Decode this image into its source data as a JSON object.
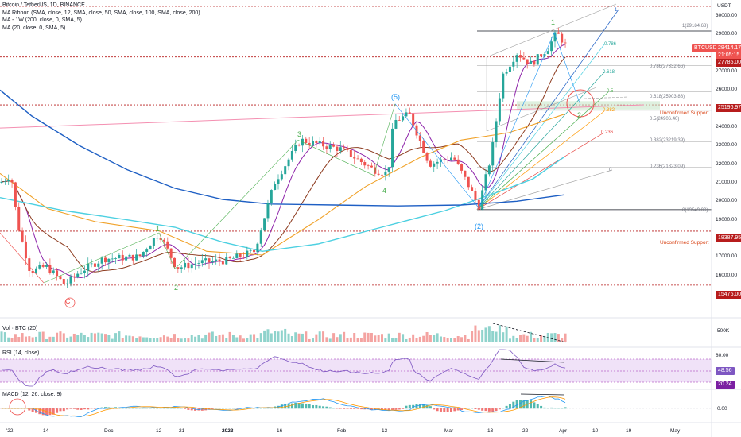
{
  "header": {
    "title": "Bitcoin / TetherUS, 1D, BINANCE",
    "ribbon": "MA Ribbon (SMA, close, 12, SMA, close, 50, SMA, close, 100, SMA, close, 200)",
    "ma_1w": "MA - 1W (200, close, 0, SMA, 5)",
    "ma_20": "MA (20, close, 0, SMA, 5)"
  },
  "axis": {
    "currency": "USDT",
    "price_ticks": [
      "30000.00",
      "29000.00",
      "28000.00",
      "27000.00",
      "26000.00",
      "25000.00",
      "24000.00",
      "23000.00",
      "22000.00",
      "21000.00",
      "20000.00",
      "19000.00",
      "18000.00",
      "17000.00",
      "16000.00",
      "15000.00"
    ],
    "volume_tick": "500K",
    "rsi_tick": "80.00",
    "macd_tick": "0.00",
    "time_labels": [
      "'22",
      "14",
      "Dec",
      "12",
      "21",
      "2023",
      "16",
      "Feb",
      "13",
      "Mar",
      "13",
      "22",
      "Apr",
      "10",
      "19",
      "May"
    ]
  },
  "price_tags": {
    "symbol": "BTCUSDT",
    "last_price": "28414.17",
    "countdown": "21:05:15",
    "level_27785": "27785.00",
    "level_25196": "25196.97",
    "level_18387": "18387.95",
    "level_15476": "15476.00"
  },
  "rsi_tags": {
    "value_1": "48.56",
    "value_2": "20.24"
  },
  "annotations": {
    "unconfirmed_support_upper": "Unconfirmed Support",
    "unconfirmed_support_lower": "Unconfirmed Support",
    "fib_1": "1(29184.68)",
    "fib_786": "0.786(27332.66)",
    "fib_618": "0.618(25903.88)",
    "fib_5": "0.5(24906.40)",
    "fib_382": "0.382(23219.39)",
    "fib_236": "0.236(21823.09)",
    "fib_0": "0(19549.09)",
    "fan_786": "0.786",
    "fan_618": "0.618",
    "fan_5": "0.5",
    "fan_382": "0.382",
    "fan_236": "0.236",
    "fan_0": "0",
    "fan_1": "1"
  },
  "waves": {
    "c": "C",
    "w1": "1",
    "w2": "2",
    "w3": "3",
    "w4": "4",
    "w5": "(5)",
    "wii": "(2)",
    "wi_top": "1",
    "wii_target": "2"
  },
  "panes": {
    "volume": "Vol · BTC (20)",
    "rsi": "RSI (14, close)",
    "macd": "MACD (12, 26, close, 9)"
  },
  "colors": {
    "up": "#26a69a",
    "down": "#ef5350",
    "ma12": "#8e24aa",
    "ma50": "#8d3b1f",
    "ma100": "#f0a128",
    "ma200": "#4dd0e1",
    "ma1w": "#1e5fc4",
    "rsi_band": "#e9d5f5",
    "accent_red": "#d84315"
  },
  "chart_data": {
    "type": "candlestick",
    "title": "Bitcoin / TetherUS, 1D, BINANCE",
    "ylim": [
      15000,
      30500
    ],
    "levels": {
      "resistance_1": 29184.68,
      "level_27785": 27785.0,
      "unconfirmed_support_upper": 25196.97,
      "unconfirmed_support_lower": 18387.95,
      "level_15476": 15476.0,
      "fib_0": 19549.09
    },
    "last_price": 28414.17,
    "key_points": [
      {
        "label": "C",
        "date": "2022-11-21",
        "price": 15476
      },
      {
        "label": "1",
        "date": "2022-12-14",
        "price": 18387
      },
      {
        "label": "2",
        "date": "2022-12-20",
        "price": 16300
      },
      {
        "label": "3",
        "date": "2023-01-21",
        "price": 23300
      },
      {
        "label": "4",
        "date": "2023-02-09",
        "price": 21400
      },
      {
        "label": "(5)",
        "date": "2023-02-16",
        "price": 25250
      },
      {
        "label": "(2)",
        "date": "2023-03-10",
        "price": 19549
      },
      {
        "label": "1",
        "date": "2023-03-30",
        "price": 29184
      }
    ],
    "rsi_levels": [
      48.56,
      20.24
    ]
  }
}
